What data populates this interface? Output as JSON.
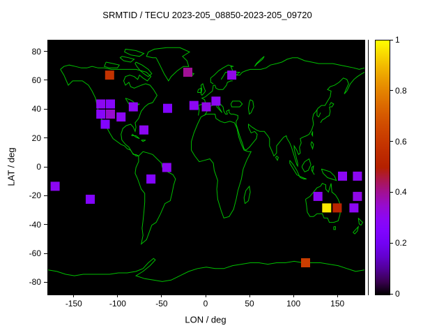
{
  "title": "SRMTID / TECU 2023-205_08850-2023-205_09720",
  "colors": {
    "background": "#ffffff",
    "plot_background": "#000000",
    "coastline": "#00c000",
    "axis": "#000000",
    "palette_name": "gnuplot-pm3d-black-purple-red-yellow"
  },
  "chart_data": {
    "type": "heatmap",
    "title": "SRMTID / TECU 2023-205_08850-2023-205_09720",
    "xlabel": "LON / deg",
    "ylabel": "LAT / deg",
    "xlim": [
      -180,
      180
    ],
    "ylim": [
      -88,
      88
    ],
    "x_ticks": [
      -150,
      -100,
      -50,
      0,
      50,
      100,
      150
    ],
    "y_ticks": [
      -80,
      -60,
      -40,
      -20,
      0,
      20,
      40,
      60,
      80
    ],
    "grid": false,
    "marker": "filled-square",
    "marker_size_px": 13,
    "colorbar": {
      "min": 0,
      "max": 1,
      "ticks": [
        0,
        0.2,
        0.4,
        0.6,
        0.8,
        1
      ],
      "position": "right"
    },
    "points": [
      {
        "lon": -110,
        "lat": 64,
        "value": 0.58
      },
      {
        "lon": -21,
        "lat": 66,
        "value": 0.4
      },
      {
        "lon": 29,
        "lat": 64,
        "value": 0.32
      },
      {
        "lon": -120,
        "lat": 44,
        "value": 0.3
      },
      {
        "lon": -109,
        "lat": 44,
        "value": 0.28
      },
      {
        "lon": -83,
        "lat": 42,
        "value": 0.3
      },
      {
        "lon": -120,
        "lat": 37,
        "value": 0.28
      },
      {
        "lon": -109,
        "lat": 37,
        "value": 0.35
      },
      {
        "lon": -97,
        "lat": 35,
        "value": 0.3
      },
      {
        "lon": -115,
        "lat": 30,
        "value": 0.26
      },
      {
        "lon": -71,
        "lat": 26,
        "value": 0.3
      },
      {
        "lon": -44,
        "lat": 41,
        "value": 0.26
      },
      {
        "lon": -14,
        "lat": 43,
        "value": 0.3
      },
      {
        "lon": 0,
        "lat": 42,
        "value": 0.32
      },
      {
        "lon": 11,
        "lat": 46,
        "value": 0.3
      },
      {
        "lon": -45,
        "lat": 0,
        "value": 0.3
      },
      {
        "lon": -63,
        "lat": -8,
        "value": 0.26
      },
      {
        "lon": -172,
        "lat": -13,
        "value": 0.3
      },
      {
        "lon": -132,
        "lat": -22,
        "value": 0.26
      },
      {
        "lon": 155,
        "lat": -6,
        "value": 0.3
      },
      {
        "lon": 172,
        "lat": -6,
        "value": 0.3
      },
      {
        "lon": 127,
        "lat": -20,
        "value": 0.3
      },
      {
        "lon": 172,
        "lat": -20,
        "value": 0.32
      },
      {
        "lon": 137,
        "lat": -28,
        "value": 0.97
      },
      {
        "lon": 149,
        "lat": -28,
        "value": 0.52
      },
      {
        "lon": 168,
        "lat": -28,
        "value": 0.3
      },
      {
        "lon": 113,
        "lat": -66,
        "value": 0.62
      }
    ]
  }
}
